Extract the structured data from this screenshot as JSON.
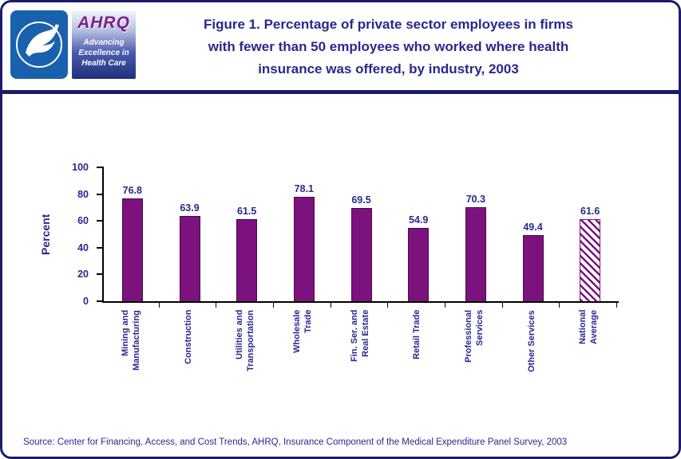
{
  "header": {
    "title_lines": [
      "Figure 1. Percentage of private sector employees in firms",
      "with fewer than 50 employees who worked where health",
      "insurance was offered, by industry, 2003"
    ],
    "logos": {
      "hhs_icon": "hhs-eagle-seal",
      "ahrq_acronym": "AHRQ",
      "ahrq_tagline_lines": [
        "Advancing",
        "Excellence in",
        "Health Care"
      ]
    }
  },
  "chart_data": {
    "type": "bar",
    "title": "Figure 1. Percentage of private sector employees in firms with fewer than 50 employees who worked where health insurance was offered, by industry, 2003",
    "categories": [
      [
        "Mining and",
        "Manufacturing"
      ],
      [
        "Construction"
      ],
      [
        "Utilities and",
        "Transportation"
      ],
      [
        "Wholesale",
        "Trade"
      ],
      [
        "Fin. Ser. and",
        "Real Estate"
      ],
      [
        "Retail Trade"
      ],
      [
        "Professional",
        "Services"
      ],
      [
        "Other Services"
      ],
      [
        "National",
        "Average"
      ]
    ],
    "values": [
      76.8,
      63.9,
      61.5,
      78.1,
      69.5,
      54.9,
      70.3,
      49.4,
      61.6
    ],
    "value_labels": [
      "76.8",
      "63.9",
      "61.5",
      "78.1",
      "69.5",
      "54.9",
      "70.3",
      "49.4",
      "61.6"
    ],
    "xlabel": "",
    "ylabel": "Percent",
    "ylim": [
      0,
      100
    ],
    "yticks": [
      0,
      20,
      40,
      60,
      80,
      100
    ],
    "grid": false,
    "legend": false,
    "bar_color": "#7b127d",
    "last_bar_hatched": true
  },
  "source": "Source: Center for Financing, Access, and Cost Trends, AHRQ, Insurance Component of the Medical Expenditure Panel Survey, 2003",
  "colors": {
    "navy_text": "#28288e",
    "border_navy": "#1b1b6b",
    "bar_purple": "#7b127d",
    "hhs_blue": "#1a61ad"
  }
}
